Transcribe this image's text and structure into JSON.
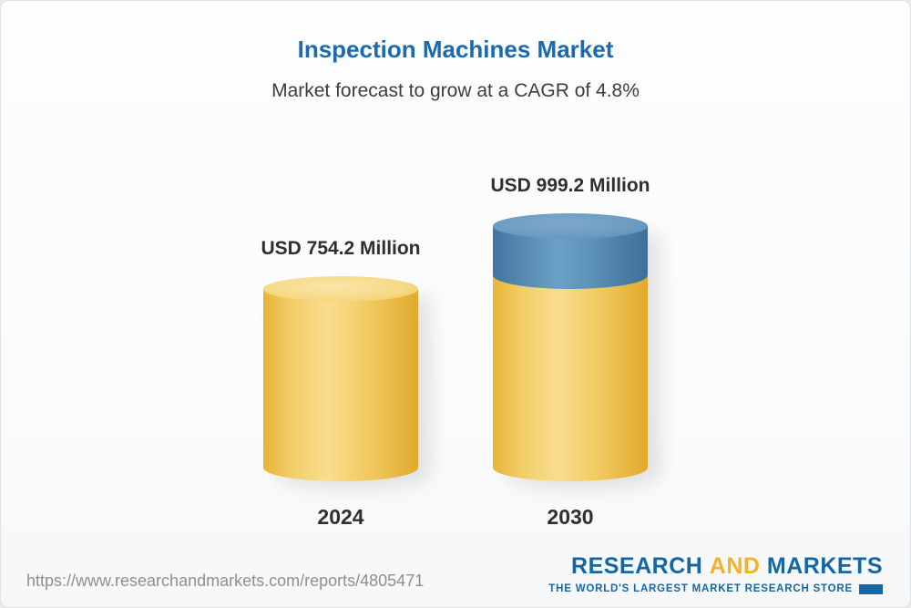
{
  "header": {
    "title": "Inspection Machines Market",
    "subtitle": "Market forecast to grow at a CAGR of 4.8%"
  },
  "chart_data": {
    "type": "bar",
    "categories": [
      "2024",
      "2030"
    ],
    "values": [
      754.2,
      999.2
    ],
    "value_labels": [
      "USD 754.2 Million",
      "USD 999.2 Million"
    ],
    "title": "Inspection Machines Market",
    "subtitle": "Market forecast to grow at a CAGR of 4.8%",
    "unit": "USD Million",
    "cagr": "4.8%",
    "legend_position": "none",
    "grid": false,
    "colors": {
      "base_segment": "#f3cd67",
      "growth_segment": "#5a8db4",
      "title": "#1a6aad"
    }
  },
  "footer": {
    "url": "https://www.researchandmarkets.com/reports/4805471",
    "logo": {
      "word1": "RESEARCH",
      "word2": "AND",
      "word3": "MARKETS",
      "tagline": "THE WORLD'S LARGEST MARKET RESEARCH STORE"
    }
  }
}
